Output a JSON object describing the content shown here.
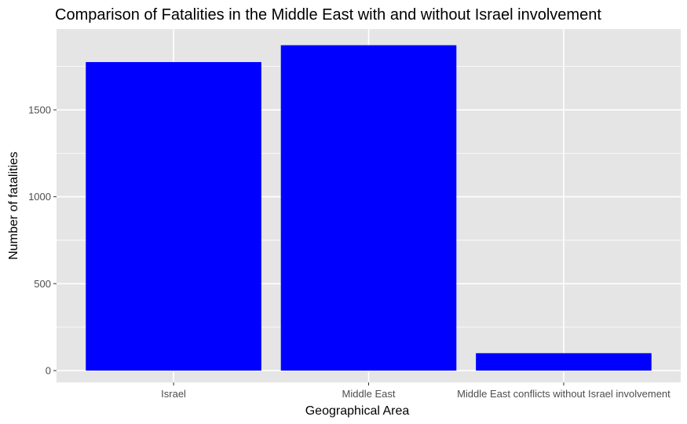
{
  "chart_data": {
    "type": "bar",
    "title": "Comparison of Fatalities in the Middle East with and without Israel involvement",
    "xlabel": "Geographical Area",
    "ylabel": "Number of fatalities",
    "categories": [
      "Israel",
      "Middle East",
      "Middle East conflicts without Israel involvement"
    ],
    "values": [
      1775,
      1872,
      100
    ],
    "ylim": [
      -68,
      1965
    ],
    "yticks": [
      0,
      500,
      1000,
      1500
    ],
    "ytick_labels": [
      "0",
      "500",
      "1000",
      "1500"
    ],
    "grid": true,
    "bar_color": "#0000ff",
    "panel_color": "#e5e5e5",
    "grid_color": "#ffffff"
  }
}
